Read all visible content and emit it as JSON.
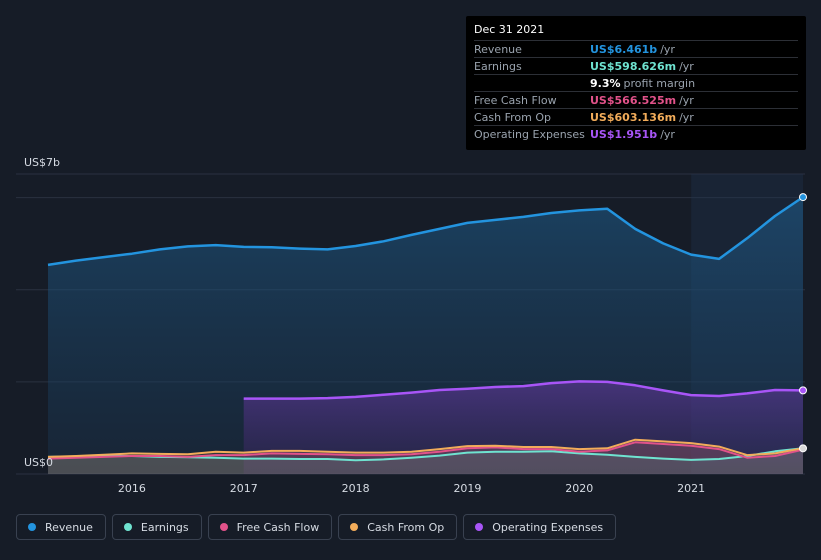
{
  "tooltip": {
    "date": "Dec 31 2021",
    "rows": [
      {
        "label": "Revenue",
        "value": "US$6.461b",
        "unit": "/yr",
        "color": "#2394df"
      },
      {
        "label": "Earnings",
        "value": "US$598.626m",
        "unit": "/yr",
        "color": "#6fe3d0"
      },
      {
        "label": "",
        "value": "9.3%",
        "unit": "profit margin",
        "color": "#ffffff"
      },
      {
        "label": "Free Cash Flow",
        "value": "US$566.525m",
        "unit": "/yr",
        "color": "#e2528a"
      },
      {
        "label": "Cash From Op",
        "value": "US$603.136m",
        "unit": "/yr",
        "color": "#f2ac5a"
      },
      {
        "label": "Operating Expenses",
        "value": "US$1.951b",
        "unit": "/yr",
        "color": "#a855f7"
      }
    ]
  },
  "legend": [
    {
      "label": "Revenue",
      "color": "#2394df"
    },
    {
      "label": "Earnings",
      "color": "#6fe3d0"
    },
    {
      "label": "Free Cash Flow",
      "color": "#e2528a"
    },
    {
      "label": "Cash From Op",
      "color": "#f2ac5a"
    },
    {
      "label": "Operating Expenses",
      "color": "#a855f7"
    }
  ],
  "chart_data": {
    "type": "area",
    "y_top_label": "US$7b",
    "y_bottom_label": "US$0",
    "ylim": [
      0,
      7
    ],
    "xlim": [
      2015.25,
      2022.0
    ],
    "x_ticks": [
      2016,
      2017,
      2018,
      2019,
      2020,
      2021
    ],
    "x_tick_labels": [
      "2016",
      "2017",
      "2018",
      "2019",
      "2020",
      "2021"
    ],
    "grid": true,
    "legend_position": "bottom",
    "series": [
      {
        "name": "Revenue",
        "color": "#2394df",
        "points": [
          [
            2015.25,
            4.88
          ],
          [
            2015.5,
            4.98
          ],
          [
            2015.75,
            5.06
          ],
          [
            2016.0,
            5.14
          ],
          [
            2016.25,
            5.24
          ],
          [
            2016.5,
            5.31
          ],
          [
            2016.75,
            5.34
          ],
          [
            2017.0,
            5.3
          ],
          [
            2017.25,
            5.29
          ],
          [
            2017.5,
            5.26
          ],
          [
            2017.75,
            5.24
          ],
          [
            2018.0,
            5.32
          ],
          [
            2018.25,
            5.43
          ],
          [
            2018.5,
            5.58
          ],
          [
            2018.75,
            5.72
          ],
          [
            2019.0,
            5.86
          ],
          [
            2019.25,
            5.93
          ],
          [
            2019.5,
            6.0
          ],
          [
            2019.75,
            6.09
          ],
          [
            2020.0,
            6.15
          ],
          [
            2020.25,
            6.19
          ],
          [
            2020.5,
            5.72
          ],
          [
            2020.75,
            5.38
          ],
          [
            2021.0,
            5.12
          ],
          [
            2021.25,
            5.02
          ],
          [
            2021.5,
            5.5
          ],
          [
            2021.75,
            6.02
          ],
          [
            2022.0,
            6.461
          ]
        ]
      },
      {
        "name": "Earnings",
        "color": "#6fe3d0",
        "points": [
          [
            2015.25,
            0.4
          ],
          [
            2015.5,
            0.41
          ],
          [
            2015.75,
            0.42
          ],
          [
            2016.0,
            0.42
          ],
          [
            2016.25,
            0.4
          ],
          [
            2016.5,
            0.39
          ],
          [
            2016.75,
            0.38
          ],
          [
            2017.0,
            0.36
          ],
          [
            2017.25,
            0.36
          ],
          [
            2017.5,
            0.35
          ],
          [
            2017.75,
            0.35
          ],
          [
            2018.0,
            0.32
          ],
          [
            2018.25,
            0.34
          ],
          [
            2018.5,
            0.38
          ],
          [
            2018.75,
            0.43
          ],
          [
            2019.0,
            0.5
          ],
          [
            2019.25,
            0.52
          ],
          [
            2019.5,
            0.52
          ],
          [
            2019.75,
            0.53
          ],
          [
            2020.0,
            0.48
          ],
          [
            2020.25,
            0.45
          ],
          [
            2020.5,
            0.4
          ],
          [
            2020.75,
            0.36
          ],
          [
            2021.0,
            0.33
          ],
          [
            2021.25,
            0.35
          ],
          [
            2021.5,
            0.42
          ],
          [
            2021.75,
            0.53
          ],
          [
            2022.0,
            0.599
          ]
        ]
      },
      {
        "name": "Free Cash Flow",
        "color": "#e2528a",
        "points": [
          [
            2015.25,
            0.36
          ],
          [
            2015.5,
            0.38
          ],
          [
            2015.75,
            0.4
          ],
          [
            2016.0,
            0.42
          ],
          [
            2016.25,
            0.42
          ],
          [
            2016.5,
            0.4
          ],
          [
            2016.75,
            0.44
          ],
          [
            2017.0,
            0.44
          ],
          [
            2017.25,
            0.48
          ],
          [
            2017.5,
            0.47
          ],
          [
            2017.75,
            0.46
          ],
          [
            2018.0,
            0.44
          ],
          [
            2018.25,
            0.44
          ],
          [
            2018.5,
            0.46
          ],
          [
            2018.75,
            0.52
          ],
          [
            2019.0,
            0.6
          ],
          [
            2019.25,
            0.62
          ],
          [
            2019.5,
            0.58
          ],
          [
            2019.75,
            0.58
          ],
          [
            2020.0,
            0.52
          ],
          [
            2020.25,
            0.55
          ],
          [
            2020.5,
            0.74
          ],
          [
            2020.75,
            0.7
          ],
          [
            2021.0,
            0.66
          ],
          [
            2021.25,
            0.58
          ],
          [
            2021.5,
            0.38
          ],
          [
            2021.75,
            0.42
          ],
          [
            2022.0,
            0.567
          ]
        ]
      },
      {
        "name": "Cash From Op",
        "color": "#f2ac5a",
        "points": [
          [
            2015.25,
            0.4
          ],
          [
            2015.5,
            0.42
          ],
          [
            2015.75,
            0.45
          ],
          [
            2016.0,
            0.48
          ],
          [
            2016.25,
            0.47
          ],
          [
            2016.5,
            0.46
          ],
          [
            2016.75,
            0.52
          ],
          [
            2017.0,
            0.5
          ],
          [
            2017.25,
            0.54
          ],
          [
            2017.5,
            0.54
          ],
          [
            2017.75,
            0.52
          ],
          [
            2018.0,
            0.5
          ],
          [
            2018.25,
            0.5
          ],
          [
            2018.5,
            0.52
          ],
          [
            2018.75,
            0.58
          ],
          [
            2019.0,
            0.65
          ],
          [
            2019.25,
            0.66
          ],
          [
            2019.5,
            0.63
          ],
          [
            2019.75,
            0.63
          ],
          [
            2020.0,
            0.58
          ],
          [
            2020.25,
            0.6
          ],
          [
            2020.5,
            0.8
          ],
          [
            2020.75,
            0.76
          ],
          [
            2021.0,
            0.72
          ],
          [
            2021.25,
            0.64
          ],
          [
            2021.5,
            0.44
          ],
          [
            2021.75,
            0.48
          ],
          [
            2022.0,
            0.603
          ]
        ]
      },
      {
        "name": "Operating Expenses",
        "color": "#a855f7",
        "points": [
          [
            2017.0,
            1.76
          ],
          [
            2017.25,
            1.76
          ],
          [
            2017.5,
            1.76
          ],
          [
            2017.75,
            1.77
          ],
          [
            2018.0,
            1.8
          ],
          [
            2018.25,
            1.85
          ],
          [
            2018.5,
            1.9
          ],
          [
            2018.75,
            1.96
          ],
          [
            2019.0,
            1.99
          ],
          [
            2019.25,
            2.03
          ],
          [
            2019.5,
            2.05
          ],
          [
            2019.75,
            2.12
          ],
          [
            2020.0,
            2.16
          ],
          [
            2020.25,
            2.15
          ],
          [
            2020.5,
            2.07
          ],
          [
            2020.75,
            1.95
          ],
          [
            2021.0,
            1.84
          ],
          [
            2021.25,
            1.82
          ],
          [
            2021.5,
            1.88
          ],
          [
            2021.75,
            1.96
          ],
          [
            2022.0,
            1.951
          ]
        ]
      }
    ]
  }
}
